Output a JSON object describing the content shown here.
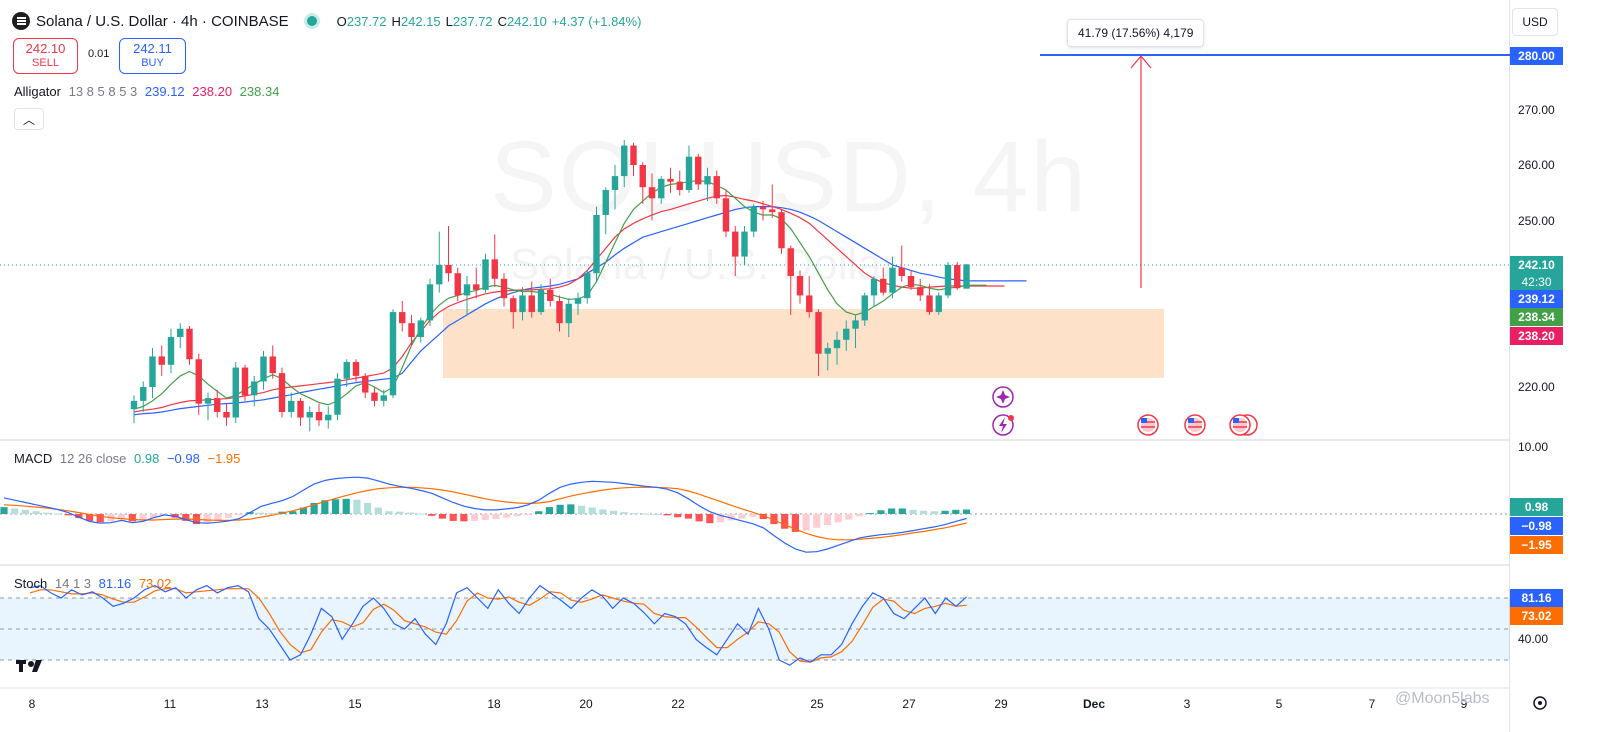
{
  "header": {
    "symbol_title": "Solana / U.S. Dollar · 4h · COINBASE",
    "ohlc": [
      {
        "k": "O",
        "v": "237.72"
      },
      {
        "k": "H",
        "v": "242.15"
      },
      {
        "k": "L",
        "v": "237.72"
      },
      {
        "k": "C",
        "v": "242.10"
      },
      {
        "k": "",
        "v": "+4.37 (+1.84%)"
      }
    ]
  },
  "trade": {
    "sell_price": "242.10",
    "sell_label": "SELL",
    "buy_price": "242.11",
    "buy_label": "BUY",
    "spread": "0.01"
  },
  "alligator": {
    "label": "Alligator",
    "params": "13 8 5 8 5 3",
    "jaw": "239.12",
    "teeth": "238.20",
    "lips": "238.34"
  },
  "macd": {
    "label": "MACD",
    "params": "12 26 close",
    "hist": "0.98",
    "macd": "−0.98",
    "signal": "−1.95"
  },
  "stoch": {
    "label": "Stoch",
    "params": "14 1 3",
    "k": "81.16",
    "d": "73.02"
  },
  "currency": "USD",
  "measure_tooltip": "41.79 (17.56%) 4,179",
  "watermark": {
    "big": "SOLUSD, 4h",
    "small": "Solana / U.S. Dollar"
  },
  "price_axis": [
    "270.00",
    "260.00",
    "250.00",
    "220.00"
  ],
  "price_tags": [
    {
      "v": "280.00",
      "color": "#2962ff"
    },
    {
      "v": "242.10",
      "color": "#26a69a"
    },
    {
      "v": "42:30",
      "color": "#26a69a"
    },
    {
      "v": "239.12",
      "color": "#2962ff"
    },
    {
      "v": "238.34",
      "color": "#43a047"
    },
    {
      "v": "238.20",
      "color": "#e91e63"
    }
  ],
  "macd_axis": [
    "10.00"
  ],
  "macd_tags": [
    {
      "v": "0.98",
      "color": "#26a69a"
    },
    {
      "v": "−0.98",
      "color": "#2962ff"
    },
    {
      "v": "−1.95",
      "color": "#ff6d00"
    }
  ],
  "stoch_axis": [
    "40.00"
  ],
  "stoch_tags": [
    {
      "v": "81.16",
      "color": "#2962ff"
    },
    {
      "v": "73.02",
      "color": "#ff6d00"
    }
  ],
  "time_axis": [
    "8",
    "11",
    "13",
    "15",
    "18",
    "20",
    "22",
    "25",
    "27",
    "29",
    "Dec",
    "3",
    "5",
    "7",
    "9"
  ],
  "credit": "@Moon5labs",
  "colors": {
    "up": "#26a69a",
    "down": "#f23645",
    "jaw": "#2962ff",
    "teeth": "#f23645",
    "lips": "#43a047",
    "zone": "#fddcbe"
  },
  "chart_data": {
    "type": "candlestick",
    "candles": [
      {
        "o": 216.0,
        "h": 218.5,
        "l": 213.5,
        "c": 217.5
      },
      {
        "o": 217.5,
        "h": 221.0,
        "l": 215.5,
        "c": 220.0
      },
      {
        "o": 220.0,
        "h": 227.0,
        "l": 218.0,
        "c": 225.5
      },
      {
        "o": 225.5,
        "h": 227.5,
        "l": 222.0,
        "c": 224.0
      },
      {
        "o": 224.0,
        "h": 230.5,
        "l": 222.5,
        "c": 229.0
      },
      {
        "o": 229.0,
        "h": 231.5,
        "l": 227.0,
        "c": 230.5
      },
      {
        "o": 230.5,
        "h": 231.0,
        "l": 224.0,
        "c": 225.0
      },
      {
        "o": 225.0,
        "h": 226.0,
        "l": 215.0,
        "c": 217.0
      },
      {
        "o": 217.0,
        "h": 219.0,
        "l": 214.0,
        "c": 218.0
      },
      {
        "o": 218.0,
        "h": 219.5,
        "l": 214.5,
        "c": 215.5
      },
      {
        "o": 215.5,
        "h": 217.0,
        "l": 213.0,
        "c": 214.5
      },
      {
        "o": 214.5,
        "h": 224.5,
        "l": 213.5,
        "c": 223.5
      },
      {
        "o": 223.5,
        "h": 224.0,
        "l": 217.5,
        "c": 218.5
      },
      {
        "o": 218.5,
        "h": 222.0,
        "l": 216.5,
        "c": 221.0
      },
      {
        "o": 221.0,
        "h": 226.5,
        "l": 219.5,
        "c": 225.5
      },
      {
        "o": 225.5,
        "h": 227.5,
        "l": 221.5,
        "c": 222.5
      },
      {
        "o": 222.5,
        "h": 223.5,
        "l": 214.5,
        "c": 215.5
      },
      {
        "o": 215.5,
        "h": 219.0,
        "l": 214.5,
        "c": 217.5
      },
      {
        "o": 217.5,
        "h": 218.0,
        "l": 213.0,
        "c": 214.5
      },
      {
        "o": 214.5,
        "h": 216.5,
        "l": 212.0,
        "c": 215.5
      },
      {
        "o": 215.5,
        "h": 217.0,
        "l": 213.0,
        "c": 214.0
      },
      {
        "o": 214.0,
        "h": 216.5,
        "l": 212.5,
        "c": 215.0
      },
      {
        "o": 215.0,
        "h": 222.5,
        "l": 214.0,
        "c": 221.5
      },
      {
        "o": 221.5,
        "h": 225.0,
        "l": 220.0,
        "c": 224.5
      },
      {
        "o": 224.5,
        "h": 225.0,
        "l": 221.0,
        "c": 222.0
      },
      {
        "o": 222.0,
        "h": 222.5,
        "l": 218.0,
        "c": 219.0
      },
      {
        "o": 219.0,
        "h": 220.0,
        "l": 216.5,
        "c": 217.5
      },
      {
        "o": 217.5,
        "h": 219.5,
        "l": 216.5,
        "c": 218.5
      },
      {
        "o": 218.5,
        "h": 234.0,
        "l": 218.0,
        "c": 233.5
      },
      {
        "o": 233.5,
        "h": 235.5,
        "l": 230.0,
        "c": 231.5
      },
      {
        "o": 231.5,
        "h": 233.0,
        "l": 227.5,
        "c": 229.0
      },
      {
        "o": 229.0,
        "h": 232.5,
        "l": 228.0,
        "c": 232.0
      },
      {
        "o": 232.0,
        "h": 239.5,
        "l": 231.0,
        "c": 238.5
      },
      {
        "o": 238.5,
        "h": 248.0,
        "l": 237.0,
        "c": 242.0
      },
      {
        "o": 242.0,
        "h": 249.0,
        "l": 239.0,
        "c": 240.5
      },
      {
        "o": 240.5,
        "h": 241.5,
        "l": 235.5,
        "c": 236.5
      },
      {
        "o": 236.5,
        "h": 240.0,
        "l": 233.0,
        "c": 238.5
      },
      {
        "o": 238.5,
        "h": 241.5,
        "l": 236.0,
        "c": 237.5
      },
      {
        "o": 237.5,
        "h": 244.0,
        "l": 237.0,
        "c": 243.0
      },
      {
        "o": 243.0,
        "h": 247.5,
        "l": 238.0,
        "c": 239.5
      },
      {
        "o": 239.5,
        "h": 240.5,
        "l": 234.5,
        "c": 236.0
      },
      {
        "o": 236.0,
        "h": 236.5,
        "l": 230.5,
        "c": 233.5
      },
      {
        "o": 233.5,
        "h": 238.0,
        "l": 232.0,
        "c": 236.5
      },
      {
        "o": 236.5,
        "h": 239.0,
        "l": 232.5,
        "c": 233.5
      },
      {
        "o": 233.5,
        "h": 238.5,
        "l": 233.0,
        "c": 237.5
      },
      {
        "o": 237.5,
        "h": 239.5,
        "l": 234.5,
        "c": 235.5
      },
      {
        "o": 235.5,
        "h": 236.5,
        "l": 230.0,
        "c": 231.5
      },
      {
        "o": 231.5,
        "h": 236.0,
        "l": 229.0,
        "c": 235.0
      },
      {
        "o": 235.0,
        "h": 237.0,
        "l": 233.0,
        "c": 236.0
      },
      {
        "o": 236.0,
        "h": 241.0,
        "l": 235.0,
        "c": 240.5
      },
      {
        "o": 240.5,
        "h": 252.5,
        "l": 239.0,
        "c": 251.0
      },
      {
        "o": 251.0,
        "h": 256.0,
        "l": 247.5,
        "c": 255.5
      },
      {
        "o": 255.5,
        "h": 260.0,
        "l": 252.0,
        "c": 258.0
      },
      {
        "o": 258.0,
        "h": 264.5,
        "l": 256.0,
        "c": 263.5
      },
      {
        "o": 263.5,
        "h": 264.0,
        "l": 258.0,
        "c": 260.0
      },
      {
        "o": 260.0,
        "h": 260.5,
        "l": 253.0,
        "c": 256.0
      },
      {
        "o": 256.0,
        "h": 258.5,
        "l": 250.0,
        "c": 254.0
      },
      {
        "o": 254.0,
        "h": 258.0,
        "l": 253.0,
        "c": 257.5
      },
      {
        "o": 257.5,
        "h": 259.5,
        "l": 255.0,
        "c": 257.0
      },
      {
        "o": 257.0,
        "h": 259.0,
        "l": 254.5,
        "c": 255.5
      },
      {
        "o": 255.5,
        "h": 263.5,
        "l": 255.0,
        "c": 261.5
      },
      {
        "o": 261.5,
        "h": 262.0,
        "l": 255.5,
        "c": 256.5
      },
      {
        "o": 256.5,
        "h": 259.5,
        "l": 253.5,
        "c": 258.0
      },
      {
        "o": 258.0,
        "h": 259.0,
        "l": 253.0,
        "c": 254.0
      },
      {
        "o": 254.0,
        "h": 255.5,
        "l": 247.0,
        "c": 248.0
      },
      {
        "o": 248.0,
        "h": 249.0,
        "l": 240.0,
        "c": 243.5
      },
      {
        "o": 243.5,
        "h": 249.0,
        "l": 242.0,
        "c": 248.0
      },
      {
        "o": 248.0,
        "h": 253.0,
        "l": 247.0,
        "c": 252.5
      },
      {
        "o": 252.5,
        "h": 253.5,
        "l": 250.0,
        "c": 252.0
      },
      {
        "o": 252.0,
        "h": 256.5,
        "l": 250.5,
        "c": 251.5
      },
      {
        "o": 251.5,
        "h": 252.0,
        "l": 244.0,
        "c": 245.0
      },
      {
        "o": 245.0,
        "h": 245.5,
        "l": 233.0,
        "c": 240.0
      },
      {
        "o": 240.0,
        "h": 241.0,
        "l": 235.0,
        "c": 236.5
      },
      {
        "o": 236.5,
        "h": 240.0,
        "l": 232.5,
        "c": 233.5
      },
      {
        "o": 233.5,
        "h": 234.0,
        "l": 222.0,
        "c": 226.0
      },
      {
        "o": 226.0,
        "h": 228.0,
        "l": 223.0,
        "c": 227.0
      },
      {
        "o": 227.0,
        "h": 230.0,
        "l": 224.0,
        "c": 228.5
      },
      {
        "o": 228.5,
        "h": 232.0,
        "l": 226.5,
        "c": 230.5
      },
      {
        "o": 230.5,
        "h": 233.0,
        "l": 227.0,
        "c": 232.0
      },
      {
        "o": 232.0,
        "h": 237.0,
        "l": 231.0,
        "c": 236.5
      },
      {
        "o": 236.5,
        "h": 240.0,
        "l": 234.5,
        "c": 239.5
      },
      {
        "o": 239.5,
        "h": 241.5,
        "l": 236.5,
        "c": 237.0
      },
      {
        "o": 237.0,
        "h": 243.5,
        "l": 236.0,
        "c": 241.5
      },
      {
        "o": 241.5,
        "h": 245.5,
        "l": 239.0,
        "c": 240.0
      },
      {
        "o": 240.0,
        "h": 241.0,
        "l": 237.5,
        "c": 238.0
      },
      {
        "o": 238.0,
        "h": 239.5,
        "l": 235.5,
        "c": 236.5
      },
      {
        "o": 236.5,
        "h": 238.5,
        "l": 233.0,
        "c": 233.5
      },
      {
        "o": 233.5,
        "h": 237.0,
        "l": 233.0,
        "c": 236.5
      },
      {
        "o": 236.5,
        "h": 242.5,
        "l": 236.0,
        "c": 242.0
      },
      {
        "o": 242.0,
        "h": 242.5,
        "l": 237.5,
        "c": 237.8
      },
      {
        "o": 237.72,
        "h": 242.15,
        "l": 237.72,
        "c": 242.1
      }
    ],
    "jaw": [
      215.0,
      215.2,
      215.3,
      215.5,
      215.8,
      216.1,
      216.3,
      216.5,
      216.7,
      216.9,
      217.0,
      217.1,
      217.3,
      217.5,
      217.7,
      218.0,
      218.3,
      218.6,
      219.0,
      219.3,
      219.6,
      219.9,
      220.2,
      220.5,
      220.8,
      221.0,
      221.2,
      221.4,
      221.6,
      222.5,
      224.5,
      226.5,
      228.0,
      229.5,
      231.0,
      232.0,
      233.0,
      234.0,
      235.0,
      235.8,
      236.5,
      237.0,
      237.5,
      237.8,
      238.0,
      238.2,
      238.5,
      239.0,
      239.5,
      240.5,
      241.5,
      242.5,
      243.8,
      245.0,
      246.0,
      247.0,
      247.5,
      248.0,
      248.5,
      249.0,
      249.5,
      250.0,
      250.5,
      251.0,
      251.5,
      252.0,
      252.3,
      252.5,
      252.5,
      252.5,
      252.3,
      252.0,
      251.5,
      250.8,
      250.0,
      249.0,
      248.0,
      247.0,
      246.0,
      245.0,
      244.0,
      243.0,
      242.0,
      241.5,
      241.0,
      240.5,
      240.2,
      239.8,
      239.5,
      239.3,
      239.12
    ],
    "teeth": [
      215.5,
      215.8,
      216.0,
      216.3,
      216.8,
      217.2,
      217.5,
      217.6,
      217.7,
      217.8,
      217.9,
      218.1,
      218.4,
      218.7,
      219.0,
      219.5,
      219.8,
      220.0,
      220.2,
      220.4,
      220.6,
      220.8,
      221.0,
      221.3,
      221.6,
      221.9,
      222.2,
      222.5,
      223.5,
      225.5,
      228.0,
      230.0,
      232.0,
      233.5,
      234.5,
      235.2,
      235.8,
      236.3,
      236.8,
      237.1,
      237.3,
      237.4,
      237.5,
      237.5,
      237.6,
      237.7,
      238.0,
      238.5,
      239.5,
      241.0,
      243.0,
      245.0,
      247.0,
      248.5,
      249.5,
      250.3,
      251.0,
      251.6,
      252.0,
      252.5,
      253.0,
      253.5,
      254.0,
      254.4,
      254.5,
      254.2,
      253.8,
      253.5,
      253.0,
      252.5,
      252.0,
      251.3,
      250.5,
      249.5,
      248.0,
      246.5,
      245.0,
      243.5,
      242.0,
      240.5,
      239.5,
      238.8,
      238.3,
      238.0,
      237.8,
      237.8,
      238.0,
      238.1,
      238.2,
      238.2,
      238.2
    ],
    "lips": [
      216.0,
      216.5,
      217.5,
      218.8,
      220.5,
      222.0,
      222.8,
      222.0,
      220.5,
      219.2,
      218.0,
      218.5,
      219.5,
      220.5,
      221.5,
      222.2,
      221.5,
      220.0,
      218.8,
      218.0,
      217.2,
      216.8,
      217.5,
      218.8,
      220.2,
      220.8,
      220.0,
      219.0,
      220.0,
      223.5,
      227.5,
      230.5,
      233.0,
      234.8,
      236.0,
      236.5,
      237.0,
      237.4,
      238.0,
      238.3,
      238.0,
      237.5,
      237.2,
      237.2,
      237.0,
      236.7,
      236.2,
      235.8,
      235.9,
      236.5,
      239.0,
      242.5,
      246.0,
      249.5,
      252.0,
      253.5,
      255.0,
      256.0,
      256.5,
      256.7,
      257.0,
      257.2,
      257.0,
      256.3,
      255.5,
      254.0,
      252.5,
      251.5,
      251.0,
      251.0,
      250.3,
      248.5,
      246.0,
      243.5,
      240.5,
      237.5,
      235.0,
      233.5,
      233.0,
      233.5,
      234.5,
      235.5,
      236.8,
      238.0,
      238.5,
      238.3,
      237.8,
      237.5,
      237.8,
      238.0,
      238.34
    ],
    "macd_hist": [
      1.5,
      1.2,
      0.9,
      0.6,
      0.3,
      0.1,
      -0.3,
      -0.9,
      -1.5,
      -1.8,
      -1.6,
      -1.2,
      -1.6,
      -1.4,
      -0.9,
      -0.3,
      -0.8,
      -1.5,
      -2.2,
      -1.9,
      -1.4,
      -0.8,
      -0.2,
      0.4,
      0.3,
      0.2,
      0.5,
      0.6,
      1.4,
      2.4,
      3.0,
      3.2,
      3.3,
      3.1,
      2.4,
      1.4,
      0.6,
      0.5,
      0.3,
      0.1,
      -0.4,
      -1.0,
      -1.5,
      -1.6,
      -1.5,
      -1.3,
      -1.1,
      -0.8,
      -0.5,
      -0.1,
      0.6,
      1.5,
      2.0,
      2.1,
      1.8,
      1.4,
      1.0,
      0.7,
      0.4,
      0.2,
      0.1,
      0.0,
      -0.3,
      -0.7,
      -1.0,
      -1.6,
      -2.0,
      -1.8,
      -1.4,
      -1.0,
      -0.6,
      -1.1,
      -2.2,
      -3.2,
      -3.9,
      -3.6,
      -3.0,
      -2.4,
      -1.8,
      -1.2,
      -0.5,
      0.2,
      0.8,
      1.2,
      1.2,
      0.9,
      0.7,
      0.6,
      0.7,
      0.9,
      0.98
    ],
    "macd_line": [
      3.5,
      3.0,
      2.5,
      2.0,
      1.5,
      1.0,
      0.3,
      -0.7,
      -1.6,
      -2.0,
      -1.9,
      -1.4,
      -1.9,
      -1.6,
      -0.8,
      -0.2,
      -0.5,
      -1.2,
      -1.9,
      -2.0,
      -1.8,
      -1.5,
      -1.0,
      0.3,
      1.6,
      2.3,
      2.9,
      3.8,
      5.2,
      6.5,
      7.3,
      7.7,
      7.9,
      8.0,
      7.8,
      7.2,
      6.5,
      6.0,
      5.6,
      5.1,
      4.5,
      3.5,
      2.5,
      1.7,
      1.2,
      0.9,
      0.9,
      1.1,
      1.4,
      2.0,
      3.0,
      4.5,
      5.8,
      6.5,
      6.9,
      7.1,
      7.0,
      6.9,
      6.6,
      6.3,
      6.0,
      5.8,
      5.4,
      4.6,
      3.3,
      1.8,
      0.5,
      -0.3,
      -0.9,
      -1.5,
      -2.1,
      -3.0,
      -4.7,
      -6.3,
      -7.6,
      -8.3,
      -8.2,
      -7.6,
      -6.8,
      -6.0,
      -5.2,
      -4.8,
      -4.5,
      -4.3,
      -4.0,
      -3.6,
      -3.2,
      -2.8,
      -2.3,
      -1.6,
      -0.98
    ],
    "macd_signal": [
      2.0,
      1.9,
      1.7,
      1.5,
      1.3,
      1.0,
      0.7,
      0.3,
      -0.1,
      -0.5,
      -0.8,
      -1.0,
      -1.2,
      -1.3,
      -1.3,
      -1.2,
      -1.1,
      -1.1,
      -1.2,
      -1.3,
      -1.4,
      -1.4,
      -1.3,
      -1.1,
      -0.7,
      -0.3,
      0.2,
      0.7,
      1.3,
      2.0,
      2.7,
      3.4,
      4.0,
      4.6,
      5.1,
      5.5,
      5.7,
      5.8,
      5.8,
      5.7,
      5.5,
      5.2,
      4.8,
      4.3,
      3.8,
      3.3,
      2.9,
      2.6,
      2.4,
      2.3,
      2.4,
      2.7,
      3.3,
      3.9,
      4.4,
      4.8,
      5.2,
      5.5,
      5.7,
      5.8,
      5.8,
      5.8,
      5.7,
      5.5,
      5.0,
      4.3,
      3.5,
      2.7,
      1.9,
      1.1,
      0.4,
      -0.4,
      -1.3,
      -2.3,
      -3.3,
      -4.2,
      -4.9,
      -5.4,
      -5.6,
      -5.6,
      -5.5,
      -5.3,
      -5.1,
      -4.8,
      -4.5,
      -4.1,
      -3.8,
      -3.4,
      -3.0,
      -2.5,
      -1.95
    ],
    "stoch_k": [
      90,
      92,
      85,
      80,
      88,
      83,
      86,
      80,
      72,
      75,
      80,
      88,
      92,
      86,
      90,
      80,
      88,
      92,
      85,
      90,
      92,
      86,
      60,
      50,
      35,
      20,
      25,
      45,
      70,
      62,
      40,
      55,
      72,
      80,
      70,
      55,
      50,
      60,
      45,
      35,
      55,
      85,
      90,
      80,
      70,
      88,
      75,
      65,
      80,
      92,
      85,
      78,
      70,
      80,
      88,
      82,
      70,
      80,
      75,
      66,
      55,
      65,
      62,
      55,
      40,
      32,
      25,
      40,
      55,
      45,
      70,
      50,
      20,
      15,
      22,
      18,
      25,
      25,
      35,
      55,
      72,
      85,
      80,
      65,
      60,
      70,
      80,
      65,
      80,
      72,
      81.16
    ],
    "stoch_d": [
      85,
      88,
      88,
      86,
      84,
      84,
      85,
      83,
      79,
      76,
      76,
      81,
      87,
      89,
      89,
      85,
      86,
      87,
      88,
      89,
      89,
      89,
      80,
      65,
      48,
      35,
      27,
      30,
      47,
      59,
      57,
      52,
      56,
      69,
      74,
      68,
      58,
      55,
      52,
      47,
      45,
      58,
      77,
      85,
      80,
      79,
      81,
      76,
      73,
      79,
      86,
      85,
      78,
      76,
      79,
      83,
      80,
      77,
      75,
      74,
      65,
      62,
      61,
      61,
      52,
      42,
      32,
      32,
      40,
      47,
      57,
      55,
      47,
      28,
      19,
      18,
      22,
      23,
      28,
      38,
      54,
      71,
      79,
      77,
      68,
      65,
      70,
      72,
      75,
      72,
      73.02
    ]
  }
}
